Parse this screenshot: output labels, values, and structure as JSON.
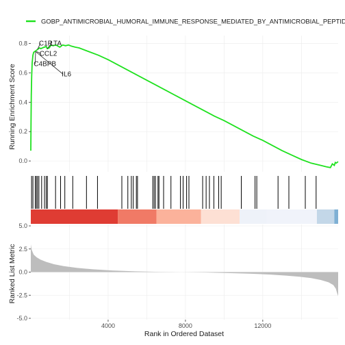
{
  "chart_data": {
    "type": "line",
    "legend": {
      "placement": "top",
      "entries": [
        {
          "name": "GOBP_ANTIMICROBIAL_HUMORAL_IMMUNE_RESPONSE_MEDIATED_BY_ANTIMICROBIAL_PEPTIDE",
          "color": "#1ee11e"
        }
      ]
    },
    "grid": true,
    "x_axis": {
      "label": "Rank in Ordered Dataset",
      "range": [
        0,
        15900
      ],
      "ticks": [
        4000,
        8000,
        12000
      ],
      "tick_labels": [
        "4000",
        "8000",
        "12000"
      ]
    },
    "enrichment_panel": {
      "ylabel": "Running Enrichment Score",
      "ylim": [
        -0.06,
        0.84
      ],
      "ticks": [
        0.0,
        0.2,
        0.4,
        0.6,
        0.8
      ],
      "tick_labels": [
        "0.0",
        "0.2",
        "0.4",
        "0.6",
        "0.8"
      ],
      "series": [
        {
          "name": "GOBP_ANTIMICROBIAL_HUMORAL_IMMUNE_RESPONSE_MEDIATED_BY_ANTIMICROBIAL_PEPTIDE",
          "color": "#1ee11e",
          "x": [
            0,
            10,
            25,
            45,
            70,
            110,
            150,
            200,
            260,
            350,
            450,
            520,
            600,
            700,
            800,
            850,
            950,
            1050,
            1150,
            1300,
            1500,
            1650,
            1800,
            1950,
            2100,
            2300,
            2500,
            3000,
            3500,
            4000,
            4500,
            5000,
            5500,
            6000,
            6500,
            7000,
            7500,
            8000,
            8500,
            9000,
            9500,
            10000,
            10500,
            11000,
            11500,
            12000,
            12500,
            13000,
            13500,
            14000,
            14500,
            15000,
            15300,
            15500,
            15600,
            15700,
            15750,
            15800,
            15900
          ],
          "y": [
            0.07,
            0.25,
            0.45,
            0.58,
            0.67,
            0.72,
            0.74,
            0.745,
            0.75,
            0.76,
            0.77,
            0.765,
            0.77,
            0.775,
            0.78,
            0.765,
            0.77,
            0.79,
            0.785,
            0.79,
            0.775,
            0.79,
            0.785,
            0.79,
            0.782,
            0.775,
            0.77,
            0.745,
            0.72,
            0.69,
            0.655,
            0.62,
            0.585,
            0.55,
            0.515,
            0.48,
            0.445,
            0.41,
            0.375,
            0.34,
            0.305,
            0.275,
            0.24,
            0.205,
            0.17,
            0.14,
            0.105,
            0.07,
            0.04,
            0.01,
            -0.015,
            -0.03,
            -0.04,
            -0.045,
            -0.02,
            -0.03,
            -0.01,
            -0.015,
            -0.005
          ]
        }
      ],
      "annotations": [
        {
          "text": "C1R",
          "x": 420,
          "y": 0.787
        },
        {
          "text": "LTA",
          "x": 1000,
          "y": 0.787
        },
        {
          "text": "CCL2",
          "x": 450,
          "y": 0.717
        },
        {
          "text": "C4BPB",
          "x": 150,
          "y": 0.647
        },
        {
          "text": "IL6",
          "x": 1600,
          "y": 0.577
        }
      ],
      "annotation_targets": [
        {
          "x": 350,
          "y": 0.76
        },
        {
          "x": 850,
          "y": 0.765
        },
        {
          "x": 300,
          "y": 0.745
        },
        {
          "x": 250,
          "y": 0.745
        },
        {
          "x": 250,
          "y": 0.745
        }
      ]
    },
    "hits_panel": {
      "gene_ranks": [
        40,
        110,
        230,
        290,
        350,
        420,
        560,
        710,
        800,
        860,
        1280,
        1540,
        1760,
        2170,
        2880,
        3450,
        4710,
        5020,
        5200,
        5300,
        5460,
        5520,
        6310,
        6380,
        6450,
        6580,
        6630,
        6870,
        7250,
        7740,
        7880,
        8060,
        8180,
        8890,
        9070,
        9240,
        9470,
        9720,
        9850,
        10890,
        11600,
        11690,
        12790,
        13350,
        14200,
        14760
      ]
    },
    "color_band": {
      "breaks": [
        0,
        4500,
        6500,
        8800,
        10800,
        12200,
        14800,
        15700,
        15900
      ],
      "colors": [
        "#df3c33",
        "#f07a66",
        "#fbb29b",
        "#fde0d4",
        "#eef2f9",
        "#f0f3fa",
        "#c3d7e8",
        "#7fb0d4"
      ]
    },
    "ranked_panel": {
      "ylabel": "Ranked List Metric",
      "ylim": [
        -5.0,
        5.0
      ],
      "ticks": [
        -5.0,
        -2.5,
        0.0,
        2.5,
        5.0
      ],
      "tick_labels": [
        "-5.0",
        "-2.5",
        "0.0",
        "2.5",
        "5.0"
      ],
      "x": [
        0,
        50,
        150,
        300,
        500,
        800,
        1200,
        1700,
        2400,
        3200,
        4200,
        5400,
        6600,
        7800,
        9000,
        10200,
        11400,
        12400,
        13200,
        13900,
        14500,
        15000,
        15400,
        15650,
        15780,
        15850,
        15900
      ],
      "values": [
        3.0,
        2.4,
        1.9,
        1.6,
        1.35,
        1.1,
        0.85,
        0.65,
        0.45,
        0.3,
        0.18,
        0.08,
        0.03,
        0.0,
        -0.04,
        -0.1,
        -0.18,
        -0.27,
        -0.38,
        -0.5,
        -0.65,
        -0.85,
        -1.1,
        -1.4,
        -1.8,
        -2.3,
        -2.6
      ]
    }
  }
}
